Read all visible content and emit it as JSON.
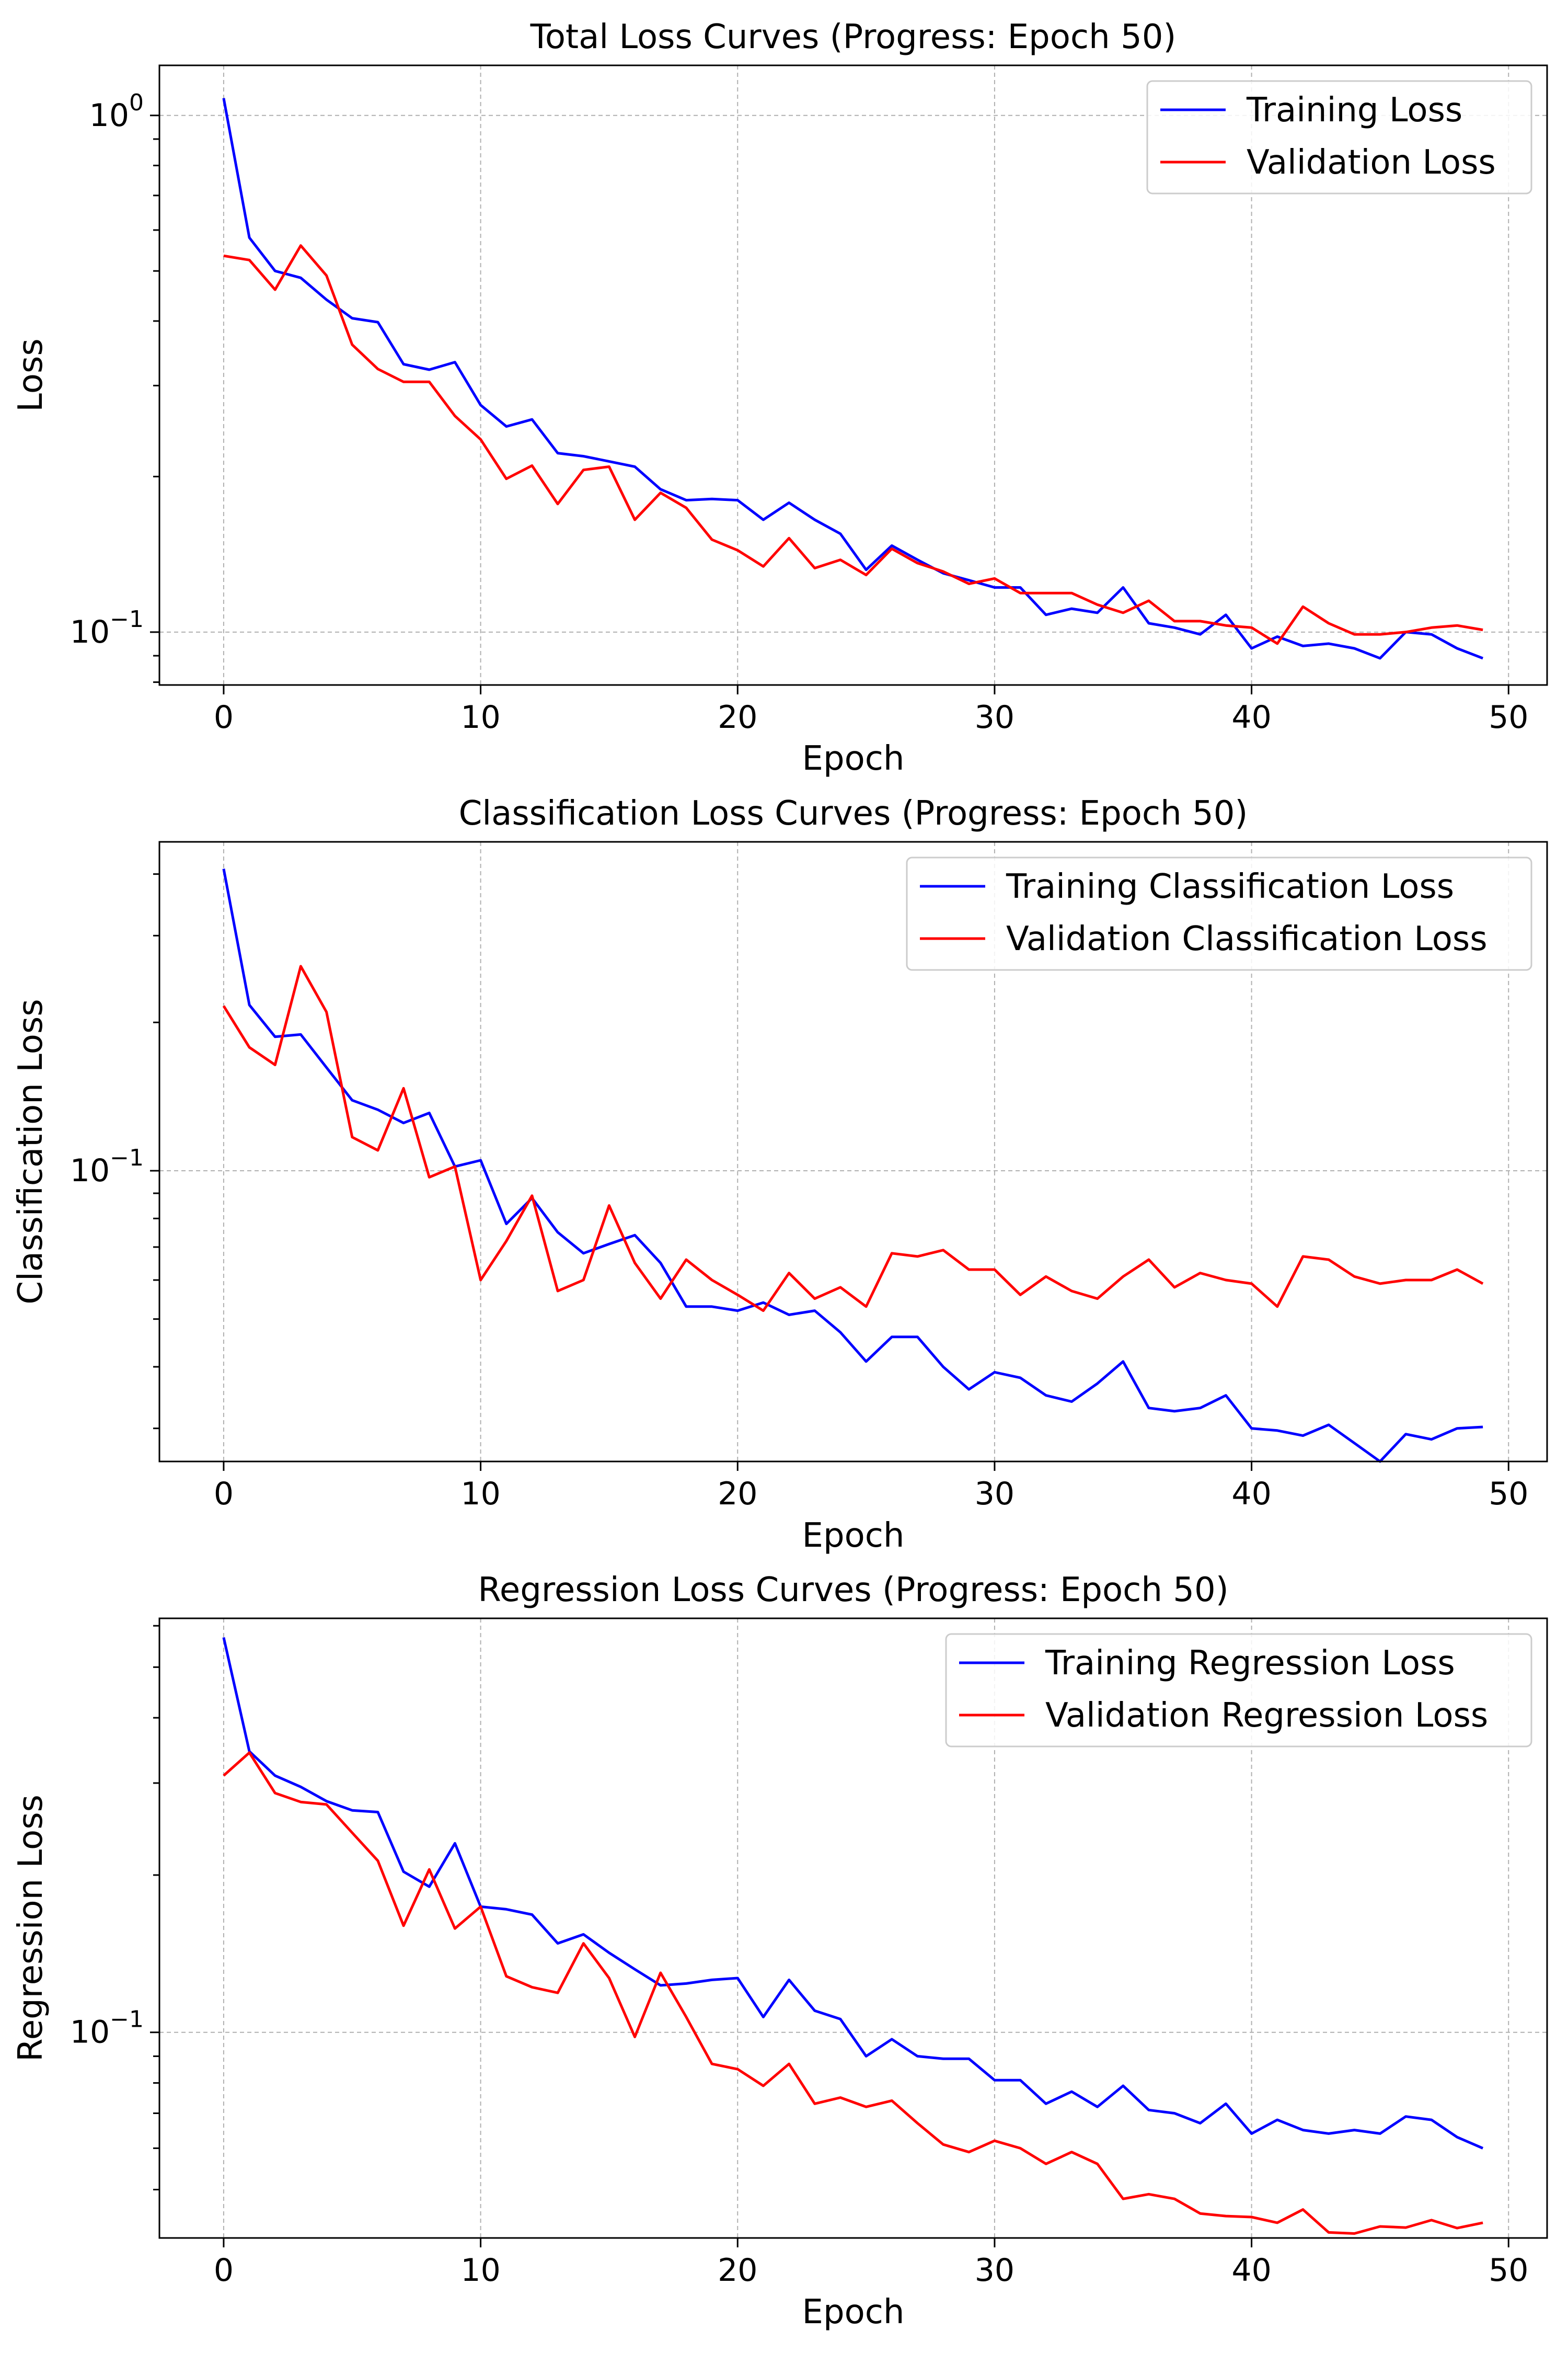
{
  "chart_data": [
    {
      "type": "line",
      "title": "Total Loss Curves (Progress: Epoch 50)",
      "xlabel": "Epoch",
      "ylabel": "Loss",
      "yscale": "log",
      "xlim": [
        -2.5,
        51.5
      ],
      "ylim": [
        0.079,
        1.25
      ],
      "xticks": [
        0,
        10,
        20,
        30,
        40,
        50
      ],
      "yticks": [
        {
          "value": 1.0,
          "base": "10",
          "exp": "0"
        },
        {
          "value": 0.1,
          "base": "10",
          "exp": "−1"
        }
      ],
      "grid": true,
      "legend_position": "top-right",
      "series": [
        {
          "name": "Training Loss",
          "color": "#0000ff",
          "values": [
            1.08,
            0.58,
            0.5,
            0.485,
            0.44,
            0.405,
            0.398,
            0.33,
            0.322,
            0.333,
            0.275,
            0.25,
            0.258,
            0.222,
            0.219,
            0.214,
            0.209,
            0.189,
            0.18,
            0.181,
            0.18,
            0.165,
            0.178,
            0.165,
            0.155,
            0.132,
            0.147,
            0.138,
            0.13,
            0.126,
            0.122,
            0.122,
            0.108,
            0.111,
            0.109,
            0.122,
            0.104,
            0.102,
            0.099,
            0.108,
            0.093,
            0.098,
            0.094,
            0.095,
            0.093,
            0.089,
            0.1,
            0.099,
            0.093,
            0.089
          ]
        },
        {
          "name": "Validation Loss",
          "color": "#ff0000",
          "values": [
            0.535,
            0.525,
            0.46,
            0.56,
            0.49,
            0.36,
            0.323,
            0.305,
            0.305,
            0.262,
            0.236,
            0.198,
            0.21,
            0.177,
            0.206,
            0.209,
            0.165,
            0.186,
            0.174,
            0.151,
            0.144,
            0.134,
            0.152,
            0.133,
            0.138,
            0.129,
            0.145,
            0.136,
            0.131,
            0.124,
            0.127,
            0.119,
            0.119,
            0.119,
            0.113,
            0.109,
            0.115,
            0.105,
            0.105,
            0.103,
            0.102,
            0.095,
            0.112,
            0.104,
            0.099,
            0.099,
            0.1,
            0.102,
            0.103,
            0.101
          ]
        }
      ]
    },
    {
      "type": "line",
      "title": "Classification Loss Curves (Progress: Epoch 50)",
      "xlabel": "Epoch",
      "ylabel": "Classification Loss",
      "yscale": "log",
      "xlim": [
        -2.5,
        51.5
      ],
      "ylim": [
        0.0257,
        0.465
      ],
      "xticks": [
        0,
        10,
        20,
        30,
        40,
        50
      ],
      "yticks": [
        {
          "value": 0.1,
          "base": "10",
          "exp": "−1"
        }
      ],
      "grid": true,
      "legend_position": "top-right",
      "series": [
        {
          "name": "Training Classification Loss",
          "color": "#0000ff",
          "values": [
            0.41,
            0.217,
            0.187,
            0.189,
            0.162,
            0.139,
            0.133,
            0.125,
            0.131,
            0.102,
            0.105,
            0.078,
            0.088,
            0.075,
            0.068,
            0.071,
            0.074,
            0.065,
            0.053,
            0.053,
            0.052,
            0.054,
            0.051,
            0.052,
            0.047,
            0.041,
            0.046,
            0.046,
            0.04,
            0.036,
            0.039,
            0.038,
            0.035,
            0.034,
            0.037,
            0.041,
            0.033,
            0.0325,
            0.033,
            0.035,
            0.03,
            0.0297,
            0.029,
            0.0305,
            0.028,
            0.0257,
            0.0292,
            0.0285,
            0.03,
            0.0302
          ]
        },
        {
          "name": "Validation Classification Loss",
          "color": "#ff0000",
          "values": [
            0.216,
            0.178,
            0.164,
            0.26,
            0.21,
            0.117,
            0.11,
            0.147,
            0.097,
            0.102,
            0.06,
            0.072,
            0.089,
            0.057,
            0.06,
            0.085,
            0.065,
            0.055,
            0.066,
            0.06,
            0.056,
            0.052,
            0.062,
            0.055,
            0.058,
            0.053,
            0.068,
            0.067,
            0.069,
            0.063,
            0.063,
            0.056,
            0.061,
            0.057,
            0.055,
            0.061,
            0.066,
            0.058,
            0.062,
            0.06,
            0.059,
            0.053,
            0.067,
            0.066,
            0.061,
            0.059,
            0.06,
            0.06,
            0.063,
            0.059
          ]
        }
      ]
    },
    {
      "type": "line",
      "title": "Regression Loss Curves (Progress: Epoch 50)",
      "xlabel": "Epoch",
      "ylabel": "Regression Loss",
      "yscale": "log",
      "xlim": [
        -2.5,
        51.5
      ],
      "ylim": [
        0.0404,
        0.62
      ],
      "xticks": [
        0,
        10,
        20,
        30,
        40,
        50
      ],
      "yticks": [
        {
          "value": 0.1,
          "base": "10",
          "exp": "−1"
        }
      ],
      "grid": true,
      "legend_position": "top-right",
      "series": [
        {
          "name": "Training Regression Loss",
          "color": "#0000ff",
          "values": [
            0.57,
            0.345,
            0.31,
            0.295,
            0.277,
            0.266,
            0.264,
            0.203,
            0.19,
            0.23,
            0.174,
            0.172,
            0.168,
            0.148,
            0.154,
            0.142,
            0.132,
            0.123,
            0.124,
            0.126,
            0.127,
            0.107,
            0.126,
            0.11,
            0.106,
            0.09,
            0.097,
            0.09,
            0.089,
            0.089,
            0.081,
            0.081,
            0.073,
            0.077,
            0.072,
            0.079,
            0.071,
            0.07,
            0.067,
            0.073,
            0.064,
            0.068,
            0.065,
            0.064,
            0.065,
            0.064,
            0.069,
            0.068,
            0.063,
            0.06
          ]
        },
        {
          "name": "Validation Regression Loss",
          "color": "#ff0000",
          "values": [
            0.31,
            0.343,
            0.287,
            0.276,
            0.273,
            0.241,
            0.213,
            0.16,
            0.205,
            0.158,
            0.174,
            0.128,
            0.122,
            0.119,
            0.148,
            0.127,
            0.098,
            0.13,
            0.107,
            0.087,
            0.085,
            0.079,
            0.087,
            0.073,
            0.075,
            0.072,
            0.074,
            0.067,
            0.061,
            0.059,
            0.062,
            0.06,
            0.056,
            0.059,
            0.056,
            0.048,
            0.049,
            0.048,
            0.045,
            0.0445,
            0.0443,
            0.0432,
            0.0458,
            0.0414,
            0.0412,
            0.0425,
            0.0423,
            0.0437,
            0.0422,
            0.0432
          ]
        }
      ]
    }
  ]
}
